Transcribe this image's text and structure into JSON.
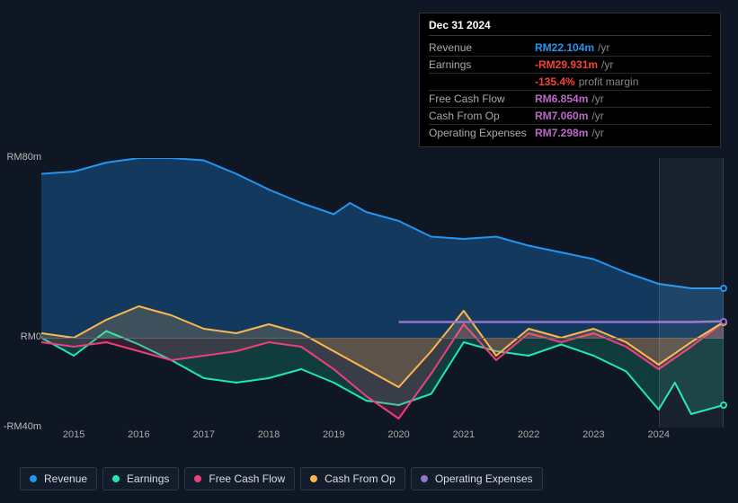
{
  "tooltip": {
    "title": "Dec 31 2024",
    "rows": [
      {
        "label": "Revenue",
        "value": "RM22.104m",
        "suffix": "/yr",
        "color": "#2196f3"
      },
      {
        "label": "Earnings",
        "value": "-RM29.931m",
        "suffix": "/yr",
        "color": "#f44336"
      },
      {
        "label": "",
        "value": "-135.4%",
        "suffix": "profit margin",
        "color": "#f44336",
        "indent": true
      },
      {
        "label": "Free Cash Flow",
        "value": "RM6.854m",
        "suffix": "/yr",
        "color": "#ba68c8"
      },
      {
        "label": "Cash From Op",
        "value": "RM7.060m",
        "suffix": "/yr",
        "color": "#ba68c8"
      },
      {
        "label": "Operating Expenses",
        "value": "RM7.298m",
        "suffix": "/yr",
        "color": "#ba68c8"
      }
    ]
  },
  "chart": {
    "type": "line",
    "y": {
      "max": 80,
      "zero": 0,
      "min": -40,
      "labels": [
        {
          "v": 80,
          "text": "RM80m"
        },
        {
          "v": 0,
          "text": "RM0"
        },
        {
          "v": -40,
          "text": "-RM40m"
        }
      ]
    },
    "x": {
      "min": 2014.5,
      "max": 2025.0,
      "ticks": [
        2015,
        2016,
        2017,
        2018,
        2019,
        2020,
        2021,
        2022,
        2023,
        2024
      ]
    },
    "hover_band": {
      "from": 2024.0,
      "to": 2025.0
    },
    "background": "#0f1724",
    "plot_bg": "#0f1724",
    "grid_color": "#666666",
    "series": [
      {
        "name": "Revenue",
        "color": "#2196f3",
        "fill": "rgba(33,150,243,0.28)",
        "fill_to_zero": true,
        "line_width": 2,
        "data": [
          [
            2014.5,
            73
          ],
          [
            2015,
            74
          ],
          [
            2015.5,
            78
          ],
          [
            2016,
            80
          ],
          [
            2016.5,
            80
          ],
          [
            2017,
            79
          ],
          [
            2017.5,
            73
          ],
          [
            2018,
            66
          ],
          [
            2018.5,
            60
          ],
          [
            2019,
            55
          ],
          [
            2019.25,
            60
          ],
          [
            2019.5,
            56
          ],
          [
            2020,
            52
          ],
          [
            2020.5,
            45
          ],
          [
            2021,
            44
          ],
          [
            2021.5,
            45
          ],
          [
            2022,
            41
          ],
          [
            2022.5,
            38
          ],
          [
            2023,
            35
          ],
          [
            2023.5,
            29
          ],
          [
            2024,
            24
          ],
          [
            2024.5,
            22
          ],
          [
            2025,
            22
          ]
        ],
        "marker": [
          2025,
          22
        ]
      },
      {
        "name": "Earnings",
        "color": "#1de9b6",
        "fill": "rgba(29,233,182,0.18)",
        "fill_to_zero": true,
        "line_width": 2,
        "data": [
          [
            2014.5,
            0
          ],
          [
            2015,
            -8
          ],
          [
            2015.5,
            3
          ],
          [
            2016,
            -3
          ],
          [
            2016.5,
            -10
          ],
          [
            2017,
            -18
          ],
          [
            2017.5,
            -20
          ],
          [
            2018,
            -18
          ],
          [
            2018.5,
            -14
          ],
          [
            2019,
            -20
          ],
          [
            2019.5,
            -28
          ],
          [
            2020,
            -30
          ],
          [
            2020.5,
            -25
          ],
          [
            2021,
            -2
          ],
          [
            2021.5,
            -6
          ],
          [
            2022,
            -8
          ],
          [
            2022.5,
            -3
          ],
          [
            2023,
            -8
          ],
          [
            2023.5,
            -15
          ],
          [
            2024,
            -32
          ],
          [
            2024.25,
            -20
          ],
          [
            2024.5,
            -34
          ],
          [
            2025,
            -30
          ]
        ],
        "marker": [
          2025,
          -30
        ]
      },
      {
        "name": "Free Cash Flow",
        "color": "#ec407a",
        "fill": "rgba(236,64,122,0.18)",
        "fill_to_zero": true,
        "line_width": 2,
        "data": [
          [
            2014.5,
            -2
          ],
          [
            2015,
            -4
          ],
          [
            2015.5,
            -2
          ],
          [
            2016,
            -6
          ],
          [
            2016.5,
            -10
          ],
          [
            2017,
            -8
          ],
          [
            2017.5,
            -6
          ],
          [
            2018,
            -2
          ],
          [
            2018.5,
            -4
          ],
          [
            2019,
            -14
          ],
          [
            2019.5,
            -26
          ],
          [
            2020,
            -36
          ],
          [
            2020.5,
            -16
          ],
          [
            2021,
            6
          ],
          [
            2021.5,
            -10
          ],
          [
            2022,
            2
          ],
          [
            2022.5,
            -2
          ],
          [
            2023,
            2
          ],
          [
            2023.5,
            -4
          ],
          [
            2024,
            -14
          ],
          [
            2024.5,
            -4
          ],
          [
            2025,
            7
          ]
        ],
        "marker": [
          2025,
          7
        ]
      },
      {
        "name": "Cash From Op",
        "color": "#ffb74d",
        "fill": "rgba(255,183,77,0.18)",
        "fill_to_zero": true,
        "line_width": 2,
        "data": [
          [
            2014.5,
            2
          ],
          [
            2015,
            0
          ],
          [
            2015.5,
            8
          ],
          [
            2016,
            14
          ],
          [
            2016.5,
            10
          ],
          [
            2017,
            4
          ],
          [
            2017.5,
            2
          ],
          [
            2018,
            6
          ],
          [
            2018.5,
            2
          ],
          [
            2019,
            -6
          ],
          [
            2019.5,
            -14
          ],
          [
            2020,
            -22
          ],
          [
            2020.5,
            -6
          ],
          [
            2021,
            12
          ],
          [
            2021.5,
            -8
          ],
          [
            2022,
            4
          ],
          [
            2022.5,
            0
          ],
          [
            2023,
            4
          ],
          [
            2023.5,
            -2
          ],
          [
            2024,
            -12
          ],
          [
            2024.5,
            -2
          ],
          [
            2025,
            7
          ]
        ],
        "marker": [
          2025,
          7
        ]
      },
      {
        "name": "Operating Expenses",
        "color": "#9575cd",
        "fill": null,
        "fill_to_zero": false,
        "line_width": 2.5,
        "data": [
          [
            2020,
            7
          ],
          [
            2020.5,
            7
          ],
          [
            2021,
            7
          ],
          [
            2021.5,
            7
          ],
          [
            2022,
            7
          ],
          [
            2022.5,
            7
          ],
          [
            2023,
            7
          ],
          [
            2023.5,
            7
          ],
          [
            2024,
            7
          ],
          [
            2024.5,
            7
          ],
          [
            2025,
            7.3
          ]
        ],
        "marker": [
          2025,
          7.3
        ]
      }
    ]
  },
  "legend": [
    {
      "label": "Revenue",
      "color": "#2196f3"
    },
    {
      "label": "Earnings",
      "color": "#1de9b6"
    },
    {
      "label": "Free Cash Flow",
      "color": "#ec407a"
    },
    {
      "label": "Cash From Op",
      "color": "#ffb74d"
    },
    {
      "label": "Operating Expenses",
      "color": "#9575cd"
    }
  ]
}
